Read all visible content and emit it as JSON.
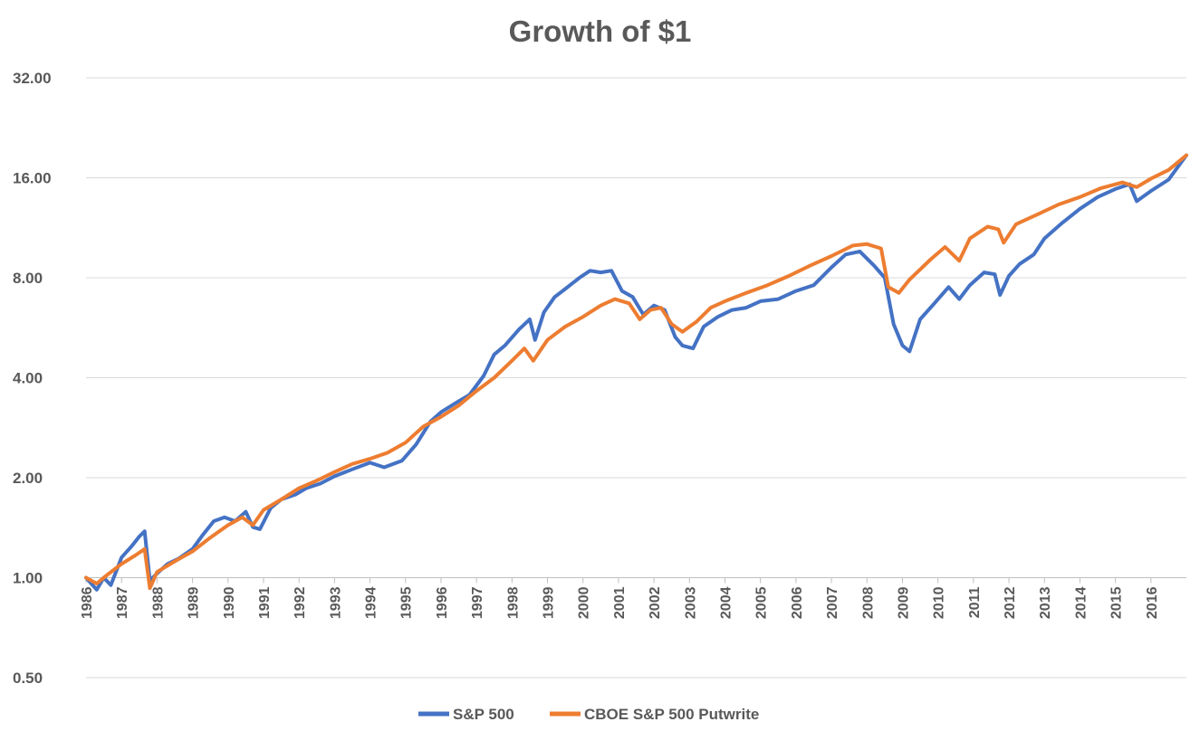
{
  "chart_data": {
    "type": "line",
    "title": "Growth of $1",
    "yscale": "log2",
    "ylim": [
      0.5,
      32
    ],
    "yticks": [
      "0.50",
      "1.00",
      "2.00",
      "4.00",
      "8.00",
      "16.00",
      "32.00"
    ],
    "ytick_values": [
      0.5,
      1,
      2,
      4,
      8,
      16,
      32
    ],
    "xlim": [
      1986,
      2017
    ],
    "xticks": [
      "1986",
      "1987",
      "1988",
      "1989",
      "1990",
      "1991",
      "1992",
      "1993",
      "1994",
      "1995",
      "1996",
      "1997",
      "1998",
      "1999",
      "2000",
      "2001",
      "2002",
      "2003",
      "2004",
      "2005",
      "2006",
      "2007",
      "2008",
      "2009",
      "2010",
      "2011",
      "2012",
      "2013",
      "2014",
      "2015",
      "2016"
    ],
    "grid": true,
    "legend_position": "bottom",
    "series": [
      {
        "name": "S&P 500",
        "color": "#4472C4",
        "points": [
          [
            1986.0,
            1.0
          ],
          [
            1986.3,
            0.92
          ],
          [
            1986.5,
            1.0
          ],
          [
            1986.7,
            0.95
          ],
          [
            1987.0,
            1.15
          ],
          [
            1987.3,
            1.25
          ],
          [
            1987.5,
            1.33
          ],
          [
            1987.65,
            1.38
          ],
          [
            1987.8,
            0.98
          ],
          [
            1988.0,
            1.03
          ],
          [
            1988.3,
            1.1
          ],
          [
            1988.6,
            1.14
          ],
          [
            1989.0,
            1.22
          ],
          [
            1989.3,
            1.35
          ],
          [
            1989.6,
            1.48
          ],
          [
            1989.9,
            1.52
          ],
          [
            1990.2,
            1.48
          ],
          [
            1990.5,
            1.58
          ],
          [
            1990.7,
            1.42
          ],
          [
            1990.9,
            1.4
          ],
          [
            1991.2,
            1.62
          ],
          [
            1991.5,
            1.72
          ],
          [
            1991.9,
            1.78
          ],
          [
            1992.2,
            1.86
          ],
          [
            1992.6,
            1.92
          ],
          [
            1993.0,
            2.02
          ],
          [
            1993.5,
            2.12
          ],
          [
            1994.0,
            2.22
          ],
          [
            1994.4,
            2.15
          ],
          [
            1994.9,
            2.25
          ],
          [
            1995.3,
            2.52
          ],
          [
            1995.7,
            2.95
          ],
          [
            1996.0,
            3.15
          ],
          [
            1996.4,
            3.35
          ],
          [
            1996.8,
            3.55
          ],
          [
            1997.2,
            4.05
          ],
          [
            1997.5,
            4.7
          ],
          [
            1997.8,
            5.0
          ],
          [
            1998.2,
            5.6
          ],
          [
            1998.5,
            6.0
          ],
          [
            1998.65,
            5.2
          ],
          [
            1998.9,
            6.3
          ],
          [
            1999.2,
            7.0
          ],
          [
            1999.5,
            7.4
          ],
          [
            1999.9,
            8.0
          ],
          [
            2000.2,
            8.4
          ],
          [
            2000.5,
            8.3
          ],
          [
            2000.8,
            8.4
          ],
          [
            2001.1,
            7.3
          ],
          [
            2001.4,
            7.0
          ],
          [
            2001.7,
            6.2
          ],
          [
            2002.0,
            6.6
          ],
          [
            2002.3,
            6.4
          ],
          [
            2002.6,
            5.3
          ],
          [
            2002.8,
            5.0
          ],
          [
            2003.1,
            4.9
          ],
          [
            2003.4,
            5.7
          ],
          [
            2003.8,
            6.1
          ],
          [
            2004.2,
            6.4
          ],
          [
            2004.6,
            6.5
          ],
          [
            2005.0,
            6.8
          ],
          [
            2005.5,
            6.9
          ],
          [
            2006.0,
            7.3
          ],
          [
            2006.5,
            7.6
          ],
          [
            2007.0,
            8.6
          ],
          [
            2007.4,
            9.4
          ],
          [
            2007.8,
            9.6
          ],
          [
            2008.2,
            8.7
          ],
          [
            2008.5,
            8.0
          ],
          [
            2008.75,
            5.8
          ],
          [
            2009.0,
            5.0
          ],
          [
            2009.2,
            4.8
          ],
          [
            2009.5,
            6.0
          ],
          [
            2009.9,
            6.7
          ],
          [
            2010.3,
            7.5
          ],
          [
            2010.6,
            6.9
          ],
          [
            2010.9,
            7.6
          ],
          [
            2011.3,
            8.3
          ],
          [
            2011.6,
            8.2
          ],
          [
            2011.75,
            7.1
          ],
          [
            2012.0,
            8.1
          ],
          [
            2012.3,
            8.8
          ],
          [
            2012.7,
            9.4
          ],
          [
            2013.0,
            10.5
          ],
          [
            2013.5,
            11.7
          ],
          [
            2014.0,
            12.9
          ],
          [
            2014.5,
            14.0
          ],
          [
            2015.0,
            14.8
          ],
          [
            2015.4,
            15.3
          ],
          [
            2015.6,
            13.6
          ],
          [
            2016.0,
            14.6
          ],
          [
            2016.5,
            15.8
          ],
          [
            2016.8,
            17.5
          ],
          [
            2017.0,
            18.7
          ]
        ]
      },
      {
        "name": "CBOE S&P 500 Putwrite",
        "color": "#ED7D31",
        "points": [
          [
            1986.0,
            1.0
          ],
          [
            1986.3,
            0.96
          ],
          [
            1986.6,
            1.02
          ],
          [
            1987.0,
            1.1
          ],
          [
            1987.4,
            1.17
          ],
          [
            1987.65,
            1.22
          ],
          [
            1987.8,
            0.93
          ],
          [
            1988.0,
            1.04
          ],
          [
            1988.5,
            1.12
          ],
          [
            1989.0,
            1.2
          ],
          [
            1989.5,
            1.32
          ],
          [
            1990.0,
            1.44
          ],
          [
            1990.4,
            1.52
          ],
          [
            1990.7,
            1.44
          ],
          [
            1991.0,
            1.6
          ],
          [
            1991.5,
            1.72
          ],
          [
            1992.0,
            1.86
          ],
          [
            1992.5,
            1.96
          ],
          [
            1993.0,
            2.08
          ],
          [
            1993.5,
            2.2
          ],
          [
            1994.0,
            2.28
          ],
          [
            1994.5,
            2.38
          ],
          [
            1995.0,
            2.55
          ],
          [
            1995.5,
            2.85
          ],
          [
            1996.0,
            3.05
          ],
          [
            1996.5,
            3.3
          ],
          [
            1997.0,
            3.65
          ],
          [
            1997.5,
            4.0
          ],
          [
            1998.0,
            4.5
          ],
          [
            1998.35,
            4.9
          ],
          [
            1998.6,
            4.5
          ],
          [
            1999.0,
            5.2
          ],
          [
            1999.5,
            5.7
          ],
          [
            2000.0,
            6.1
          ],
          [
            2000.5,
            6.6
          ],
          [
            2000.9,
            6.9
          ],
          [
            2001.3,
            6.7
          ],
          [
            2001.6,
            6.0
          ],
          [
            2001.9,
            6.4
          ],
          [
            2002.2,
            6.5
          ],
          [
            2002.5,
            5.8
          ],
          [
            2002.8,
            5.5
          ],
          [
            2003.2,
            5.9
          ],
          [
            2003.6,
            6.5
          ],
          [
            2004.0,
            6.8
          ],
          [
            2004.6,
            7.2
          ],
          [
            2005.2,
            7.6
          ],
          [
            2005.8,
            8.1
          ],
          [
            2006.4,
            8.7
          ],
          [
            2007.0,
            9.3
          ],
          [
            2007.6,
            10.0
          ],
          [
            2008.0,
            10.1
          ],
          [
            2008.4,
            9.8
          ],
          [
            2008.6,
            7.5
          ],
          [
            2008.9,
            7.2
          ],
          [
            2009.2,
            7.9
          ],
          [
            2009.8,
            9.1
          ],
          [
            2010.2,
            9.9
          ],
          [
            2010.6,
            9.0
          ],
          [
            2010.9,
            10.5
          ],
          [
            2011.4,
            11.4
          ],
          [
            2011.7,
            11.2
          ],
          [
            2011.85,
            10.2
          ],
          [
            2012.2,
            11.6
          ],
          [
            2012.8,
            12.4
          ],
          [
            2013.4,
            13.3
          ],
          [
            2014.0,
            14.0
          ],
          [
            2014.6,
            14.9
          ],
          [
            2015.2,
            15.5
          ],
          [
            2015.6,
            15.0
          ],
          [
            2016.0,
            15.9
          ],
          [
            2016.5,
            16.9
          ],
          [
            2017.0,
            18.7
          ]
        ]
      }
    ]
  }
}
